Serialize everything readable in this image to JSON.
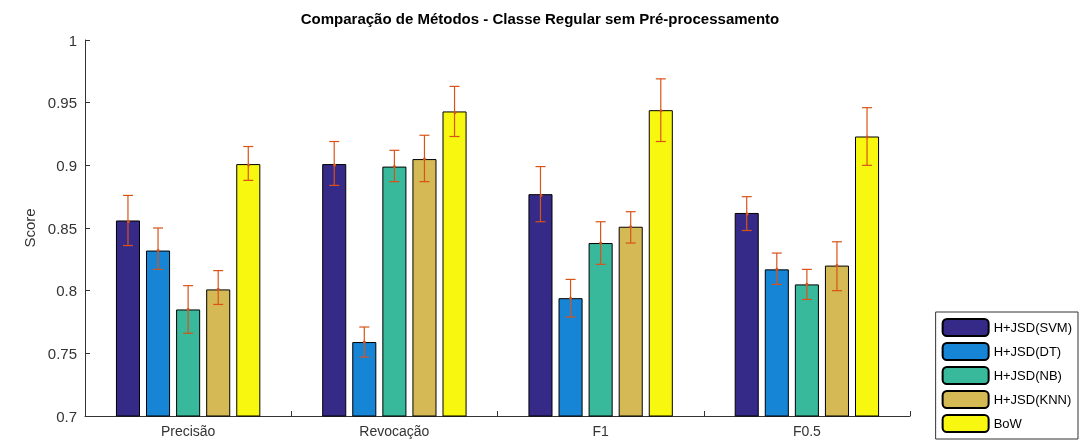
{
  "chart_data": {
    "type": "bar",
    "title": "Comparação de Métodos - Classe Regular sem Pré-processamento",
    "ylabel": "Score",
    "categories": [
      "Precisão",
      "Revocação",
      "F1",
      "F0.5"
    ],
    "series": [
      {
        "name": "H+JSD(SVM)",
        "color": "#352a87",
        "values": [
          0.856,
          0.901,
          0.877,
          0.862
        ],
        "errors": [
          [
            0.836,
            0.876
          ],
          [
            0.884,
            0.919
          ],
          [
            0.855,
            0.899
          ],
          [
            0.848,
            0.875
          ]
        ]
      },
      {
        "name": "H+JSD(DT)",
        "color": "#1785d6",
        "values": [
          0.832,
          0.759,
          0.794,
          0.817
        ],
        "errors": [
          [
            0.817,
            0.85
          ],
          [
            0.747,
            0.771
          ],
          [
            0.779,
            0.809
          ],
          [
            0.805,
            0.83
          ]
        ]
      },
      {
        "name": "H+JSD(NB)",
        "color": "#38b99c",
        "values": [
          0.785,
          0.899,
          0.838,
          0.805
        ],
        "errors": [
          [
            0.766,
            0.804
          ],
          [
            0.887,
            0.912
          ],
          [
            0.821,
            0.855
          ],
          [
            0.793,
            0.817
          ]
        ]
      },
      {
        "name": "H+JSD(KNN)",
        "color": "#d5b954",
        "values": [
          0.801,
          0.905,
          0.851,
          0.82
        ],
        "errors": [
          [
            0.789,
            0.816
          ],
          [
            0.887,
            0.924
          ],
          [
            0.838,
            0.863
          ],
          [
            0.8,
            0.839
          ]
        ]
      },
      {
        "name": "BoW",
        "color": "#f7f70f",
        "values": [
          0.901,
          0.943,
          0.944,
          0.923
        ],
        "errors": [
          [
            0.888,
            0.915
          ],
          [
            0.923,
            0.963
          ],
          [
            0.919,
            0.969
          ],
          [
            0.9,
            0.946
          ]
        ]
      }
    ],
    "ylim": [
      0.7,
      1
    ],
    "yticks": [
      0.7,
      0.75,
      0.8,
      0.85,
      0.9,
      0.95,
      1
    ],
    "grid": false,
    "legend": "bottom right"
  }
}
